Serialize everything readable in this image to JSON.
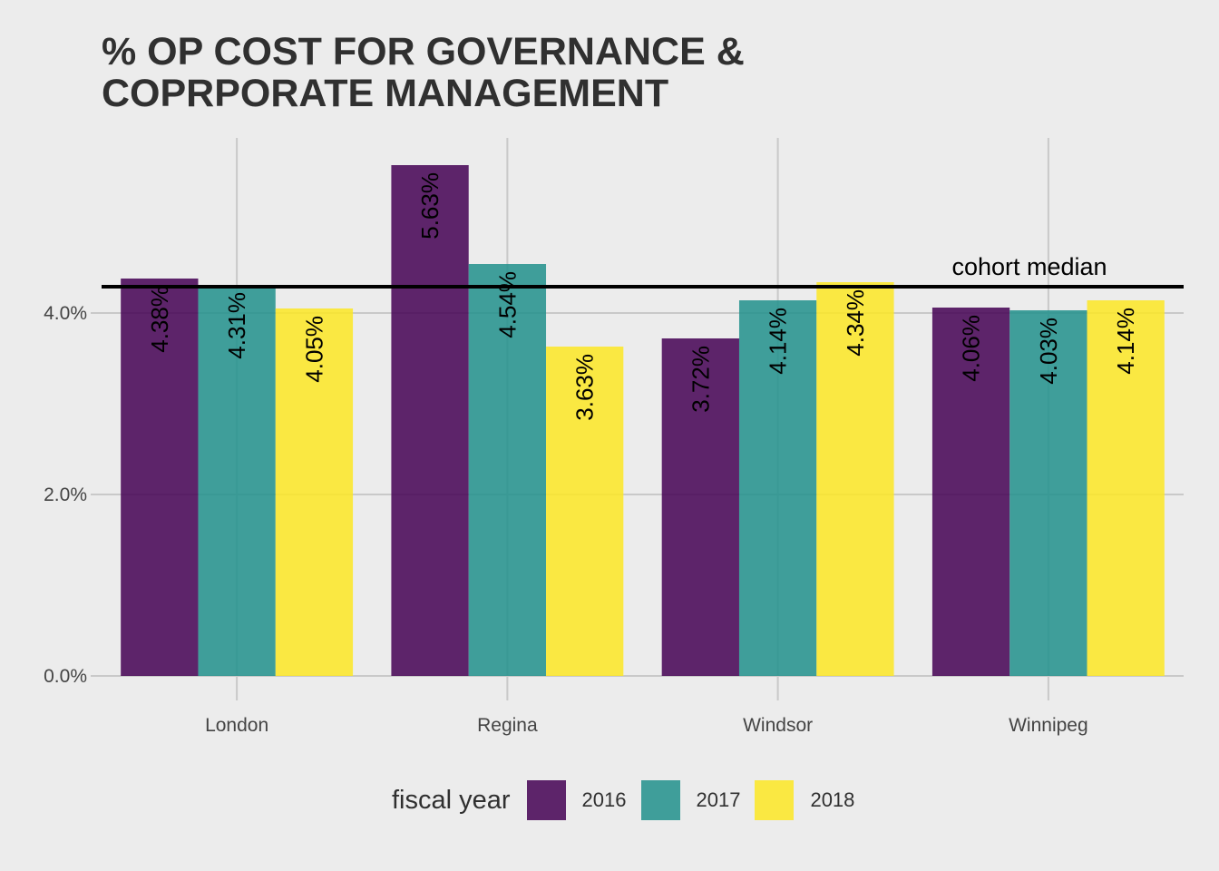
{
  "chart_data": {
    "type": "bar",
    "title_lines": [
      "% OP COST FOR GOVERNANCE &",
      "COPRPORATE MANAGEMENT"
    ],
    "xlabel": "",
    "ylabel": "",
    "categories": [
      "London",
      "Regina",
      "Windsor",
      "Winnipeg"
    ],
    "series": [
      {
        "name": "2016",
        "color": "#440154",
        "values": [
          4.38,
          5.63,
          3.72,
          4.06
        ],
        "labels": [
          "4.38%",
          "5.63%",
          "3.72%",
          "4.06%"
        ]
      },
      {
        "name": "2017",
        "color": "#21908C",
        "values": [
          4.31,
          4.54,
          4.14,
          4.03
        ],
        "labels": [
          "4.31%",
          "4.54%",
          "4.14%",
          "4.03%"
        ]
      },
      {
        "name": "2018",
        "color": "#FDE725",
        "values": [
          4.05,
          3.63,
          4.34,
          4.14
        ],
        "labels": [
          "4.05%",
          "3.63%",
          "4.34%",
          "4.14%"
        ]
      }
    ],
    "ylim": [
      0,
      6.0
    ],
    "yticks": [
      0,
      2,
      4
    ],
    "ytick_labels": [
      "0.0%",
      "2.0%",
      "4.0%"
    ],
    "median": {
      "value": 4.14,
      "label": "cohort median"
    },
    "legend": {
      "title": "fiscal year",
      "position": "bottom"
    },
    "grid": true
  }
}
